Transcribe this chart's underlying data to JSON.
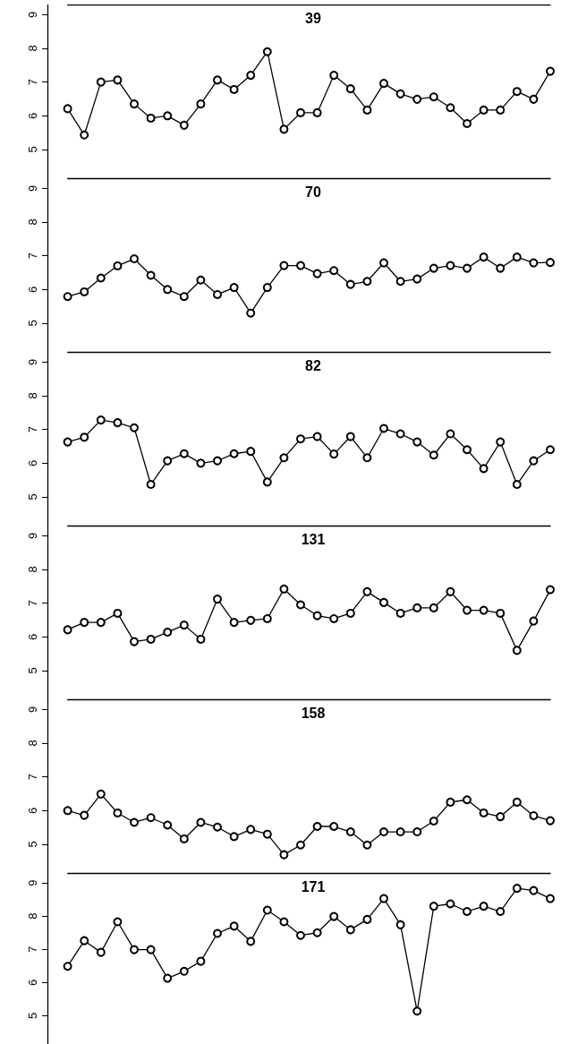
{
  "chart_data": [
    {
      "type": "line",
      "title": "39",
      "categories": [
        null,
        null,
        null,
        null,
        null,
        null,
        null,
        null,
        null,
        null,
        null,
        null,
        null,
        null,
        null,
        null,
        null,
        null,
        null,
        null,
        null,
        null,
        null,
        null,
        null,
        null,
        null,
        null,
        null,
        null
      ],
      "values": [
        6.21,
        5.43,
        7.0,
        7.06,
        6.35,
        5.93,
        6.0,
        5.72,
        6.35,
        7.06,
        6.78,
        7.2,
        7.9,
        5.6,
        6.09,
        6.09,
        7.2,
        6.8,
        6.17,
        6.96,
        6.65,
        6.49,
        6.56,
        6.24,
        5.77,
        6.17,
        6.17,
        6.72,
        6.49,
        7.32
      ],
      "color": "#000000",
      "ylim": [
        4.15,
        9.3
      ],
      "yticks": [
        5,
        6,
        7,
        8,
        9
      ],
      "marker": "circle",
      "line_style": "solid",
      "tick_labels": "y"
    },
    {
      "type": "line",
      "title": "70",
      "categories": [
        null,
        null,
        null,
        null,
        null,
        null,
        null,
        null,
        null,
        null,
        null,
        null,
        null,
        null,
        null,
        null,
        null,
        null,
        null,
        null,
        null,
        null,
        null,
        null,
        null,
        null,
        null,
        null,
        null,
        null
      ],
      "values": [
        5.79,
        5.93,
        6.34,
        6.7,
        6.91,
        6.42,
        6.0,
        5.79,
        6.28,
        5.85,
        6.06,
        5.3,
        6.06,
        6.71,
        6.71,
        6.47,
        6.56,
        6.15,
        6.24,
        6.79,
        6.24,
        6.31,
        6.63,
        6.71,
        6.63,
        6.96,
        6.63,
        6.96,
        6.79,
        6.8
      ],
      "color": "#000000",
      "ylim": [
        4.15,
        9.3
      ],
      "yticks": [
        5,
        6,
        7,
        8,
        9
      ],
      "marker": "circle",
      "line_style": "solid",
      "tick_labels": "y"
    },
    {
      "type": "line",
      "title": "82",
      "categories": [
        null,
        null,
        null,
        null,
        null,
        null,
        null,
        null,
        null,
        null,
        null,
        null,
        null,
        null,
        null,
        null,
        null,
        null,
        null,
        null,
        null,
        null,
        null,
        null,
        null,
        null,
        null,
        null,
        null,
        null
      ],
      "values": [
        6.63,
        6.77,
        7.28,
        7.2,
        7.05,
        5.37,
        6.07,
        6.28,
        6.0,
        6.07,
        6.28,
        6.35,
        5.44,
        6.16,
        6.72,
        6.79,
        6.27,
        6.79,
        6.16,
        7.03,
        6.87,
        6.63,
        6.24,
        6.87,
        6.4,
        5.84,
        6.63,
        5.37,
        6.07,
        6.4
      ],
      "color": "#000000",
      "ylim": [
        4.15,
        9.3
      ],
      "yticks": [
        5,
        6,
        7,
        8,
        9
      ],
      "marker": "circle",
      "line_style": "solid",
      "tick_labels": "y"
    },
    {
      "type": "line",
      "title": "131",
      "categories": [
        null,
        null,
        null,
        null,
        null,
        null,
        null,
        null,
        null,
        null,
        null,
        null,
        null,
        null,
        null,
        null,
        null,
        null,
        null,
        null,
        null,
        null,
        null,
        null,
        null,
        null,
        null,
        null,
        null,
        null
      ],
      "values": [
        6.21,
        6.43,
        6.43,
        6.7,
        5.86,
        5.93,
        6.14,
        6.35,
        5.93,
        7.12,
        6.43,
        6.49,
        6.54,
        7.42,
        6.95,
        6.63,
        6.54,
        6.7,
        7.34,
        7.02,
        6.7,
        6.86,
        6.86,
        7.34,
        6.79,
        6.79,
        6.7,
        5.6,
        6.47,
        7.4
      ],
      "color": "#000000",
      "ylim": [
        4.15,
        9.3
      ],
      "yticks": [
        5,
        6,
        7,
        8,
        9
      ],
      "marker": "circle",
      "line_style": "solid",
      "tick_labels": "y"
    },
    {
      "type": "line",
      "title": "158",
      "categories": [
        null,
        null,
        null,
        null,
        null,
        null,
        null,
        null,
        null,
        null,
        null,
        null,
        null,
        null,
        null,
        null,
        null,
        null,
        null,
        null,
        null,
        null,
        null,
        null,
        null,
        null,
        null,
        null,
        null,
        null
      ],
      "values": [
        6.0,
        5.86,
        6.49,
        5.93,
        5.65,
        5.79,
        5.57,
        5.16,
        5.65,
        5.51,
        5.23,
        5.44,
        5.3,
        4.69,
        4.98,
        5.53,
        5.53,
        5.37,
        4.98,
        5.37,
        5.37,
        5.37,
        5.69,
        6.25,
        6.32,
        5.93,
        5.82,
        6.25,
        5.85,
        5.7
      ],
      "color": "#000000",
      "ylim": [
        4.15,
        9.3
      ],
      "yticks": [
        5,
        6,
        7,
        8,
        9
      ],
      "marker": "circle",
      "line_style": "solid",
      "tick_labels": "y"
    },
    {
      "type": "line",
      "title": "171",
      "categories": [
        null,
        null,
        null,
        null,
        null,
        null,
        null,
        null,
        null,
        null,
        null,
        null,
        null,
        null,
        null,
        null,
        null,
        null,
        null,
        null,
        null,
        null,
        null,
        null,
        null,
        null,
        null,
        null,
        null,
        null
      ],
      "values": [
        6.49,
        7.26,
        6.91,
        7.83,
        6.99,
        6.99,
        6.13,
        6.34,
        6.64,
        7.48,
        7.7,
        7.24,
        8.18,
        7.83,
        7.42,
        7.5,
        7.99,
        7.59,
        7.9,
        8.53,
        7.74,
        5.14,
        8.3,
        8.37,
        8.14,
        8.3,
        8.14,
        8.84,
        8.77,
        8.53
      ],
      "color": "#000000",
      "ylim": [
        4.15,
        9.3
      ],
      "yticks": [
        5,
        6,
        7,
        8,
        9
      ],
      "marker": "circle",
      "line_style": "solid",
      "tick_labels": "y"
    }
  ]
}
